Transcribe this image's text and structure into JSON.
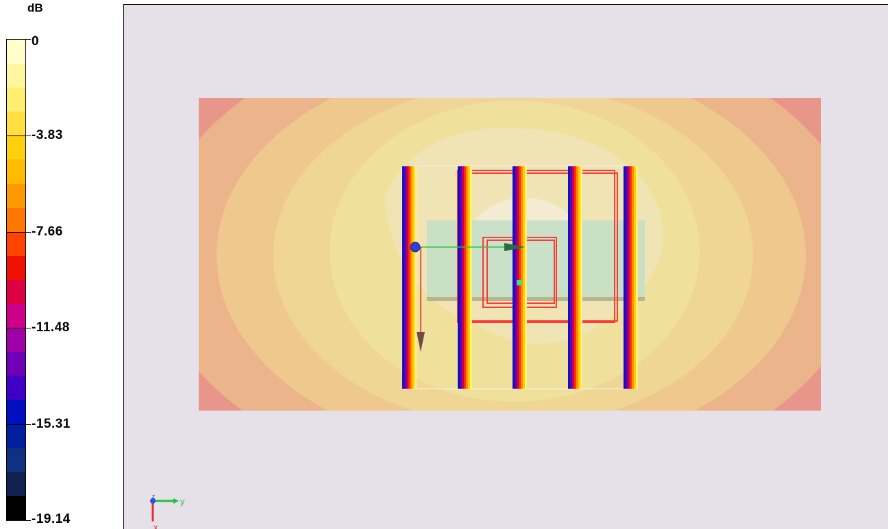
{
  "legend": {
    "unit": "dB",
    "ticks": [
      "0",
      "-3.83",
      "-7.66",
      "-11.48",
      "-15.31",
      "-19.14"
    ],
    "colors": [
      "#ffffcc",
      "#fff7a0",
      "#ffee70",
      "#ffe040",
      "#ffd010",
      "#ffbb00",
      "#ff9900",
      "#ff7700",
      "#ff4400",
      "#ee1100",
      "#dd0044",
      "#cc0088",
      "#a000a8",
      "#7000b8",
      "#4000c8",
      "#0010c0",
      "#0020a0",
      "#103080",
      "#102050",
      "#000000"
    ]
  },
  "viewport": {
    "background": "#e6e1e8",
    "contour_colors": [
      "#e8968a",
      "#ecb48a",
      "#efc88e",
      "#f0d694",
      "#efe19c",
      "#f0e4b4",
      "#f3ebd2"
    ],
    "axes": {
      "y_label": "y",
      "x_label": "x",
      "z_label": "z"
    }
  }
}
